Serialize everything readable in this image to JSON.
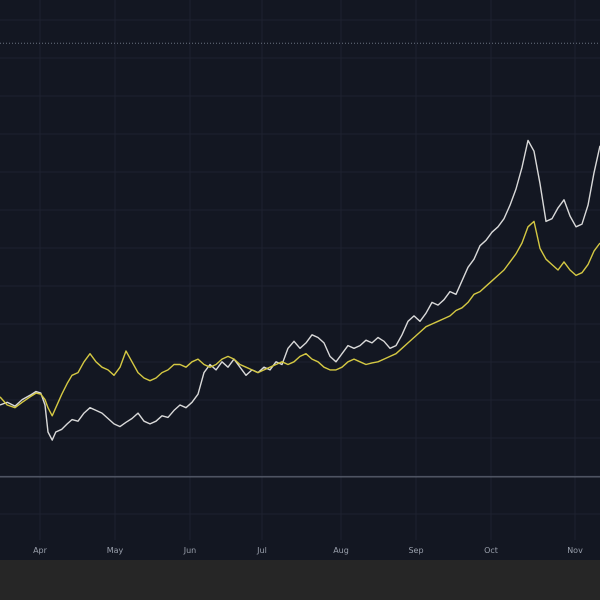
{
  "chart_data": {
    "type": "line",
    "title": "",
    "xlabel": "",
    "ylabel": "",
    "grid": true,
    "legend": "none",
    "x_ticks": [
      "Apr",
      "May",
      "Jun",
      "Jul",
      "Aug",
      "Sep",
      "Oct",
      "Nov"
    ],
    "x_range": [
      0,
      100
    ],
    "y_range": [
      0,
      100
    ],
    "reference_lines": [
      {
        "y": 92,
        "style": "dotted"
      },
      {
        "y": 11.7,
        "style": "solid"
      }
    ],
    "series": [
      {
        "color": "#d9d9d9",
        "values": [
          [
            0,
            25
          ],
          [
            1.2,
            25.5
          ],
          [
            2.5,
            24.8
          ],
          [
            3.7,
            26
          ],
          [
            5,
            26.8
          ],
          [
            6,
            27.5
          ],
          [
            6.8,
            27.2
          ],
          [
            7.5,
            25
          ],
          [
            8,
            20
          ],
          [
            8.7,
            18.5
          ],
          [
            9.3,
            20
          ],
          [
            10.3,
            20.5
          ],
          [
            11.2,
            21.5
          ],
          [
            12,
            22.3
          ],
          [
            13,
            22
          ],
          [
            14,
            23.5
          ],
          [
            15,
            24.5
          ],
          [
            16,
            24
          ],
          [
            17,
            23.5
          ],
          [
            18,
            22.5
          ],
          [
            19,
            21.5
          ],
          [
            20,
            21
          ],
          [
            21,
            21.8
          ],
          [
            22,
            22.5
          ],
          [
            23,
            23.5
          ],
          [
            24,
            22
          ],
          [
            25,
            21.5
          ],
          [
            26,
            22
          ],
          [
            27,
            23
          ],
          [
            28,
            22.7
          ],
          [
            29,
            24
          ],
          [
            30,
            25
          ],
          [
            31,
            24.5
          ],
          [
            32,
            25.5
          ],
          [
            33,
            27
          ],
          [
            34,
            31
          ],
          [
            35,
            32.5
          ],
          [
            36,
            31.5
          ],
          [
            37,
            33
          ],
          [
            38,
            32
          ],
          [
            39,
            33.5
          ],
          [
            40,
            32
          ],
          [
            41,
            30.5
          ],
          [
            42,
            31.5
          ],
          [
            43,
            31
          ],
          [
            44,
            32
          ],
          [
            45,
            31.5
          ],
          [
            46,
            33
          ],
          [
            47,
            32.5
          ],
          [
            48,
            35.5
          ],
          [
            49,
            36.8
          ],
          [
            50,
            35.5
          ],
          [
            51,
            36.5
          ],
          [
            52,
            38
          ],
          [
            53,
            37.5
          ],
          [
            54,
            36.5
          ],
          [
            55,
            34
          ],
          [
            56,
            33
          ],
          [
            57,
            34.5
          ],
          [
            58,
            36
          ],
          [
            59,
            35.5
          ],
          [
            60,
            36
          ],
          [
            61,
            37
          ],
          [
            62,
            36.5
          ],
          [
            63,
            37.5
          ],
          [
            64,
            36.8
          ],
          [
            65,
            35.5
          ],
          [
            66,
            36
          ],
          [
            67,
            38
          ],
          [
            68,
            40.5
          ],
          [
            69,
            41.5
          ],
          [
            70,
            40.5
          ],
          [
            71,
            42
          ],
          [
            72,
            44
          ],
          [
            73,
            43.5
          ],
          [
            74,
            44.5
          ],
          [
            75,
            46
          ],
          [
            76,
            45.5
          ],
          [
            77,
            48
          ],
          [
            78,
            50.5
          ],
          [
            79,
            52
          ],
          [
            80,
            54.5
          ],
          [
            81,
            55.5
          ],
          [
            82,
            57
          ],
          [
            83,
            58
          ],
          [
            84,
            59.5
          ],
          [
            85,
            62
          ],
          [
            86,
            65
          ],
          [
            87,
            69
          ],
          [
            88,
            74
          ],
          [
            89,
            72
          ],
          [
            90,
            66
          ],
          [
            91,
            59
          ],
          [
            92,
            59.5
          ],
          [
            93,
            61.5
          ],
          [
            94,
            63
          ],
          [
            95,
            60
          ],
          [
            96,
            58
          ],
          [
            97,
            58.5
          ],
          [
            98,
            62
          ],
          [
            99,
            68
          ],
          [
            100,
            73
          ]
        ]
      },
      {
        "color": "#d4c843",
        "values": [
          [
            0,
            26.5
          ],
          [
            1.2,
            25
          ],
          [
            2.5,
            24.5
          ],
          [
            3.7,
            25.5
          ],
          [
            5,
            26.5
          ],
          [
            6,
            27.2
          ],
          [
            6.8,
            27
          ],
          [
            7.5,
            26
          ],
          [
            8,
            24.5
          ],
          [
            8.7,
            23
          ],
          [
            9.3,
            24.5
          ],
          [
            10.3,
            27
          ],
          [
            11.2,
            29
          ],
          [
            12,
            30.5
          ],
          [
            13,
            31
          ],
          [
            14,
            33
          ],
          [
            15,
            34.5
          ],
          [
            16,
            33
          ],
          [
            17,
            32
          ],
          [
            18,
            31.5
          ],
          [
            19,
            30.5
          ],
          [
            20,
            32
          ],
          [
            21,
            35
          ],
          [
            22,
            33
          ],
          [
            23,
            31
          ],
          [
            24,
            30
          ],
          [
            25,
            29.5
          ],
          [
            26,
            30
          ],
          [
            27,
            31
          ],
          [
            28,
            31.5
          ],
          [
            29,
            32.5
          ],
          [
            30,
            32.5
          ],
          [
            31,
            32
          ],
          [
            32,
            33
          ],
          [
            33,
            33.5
          ],
          [
            34,
            32.5
          ],
          [
            35,
            32
          ],
          [
            36,
            32.5
          ],
          [
            37,
            33.5
          ],
          [
            38,
            34
          ],
          [
            39,
            33.5
          ],
          [
            40,
            32.5
          ],
          [
            41,
            32
          ],
          [
            42,
            31.5
          ],
          [
            43,
            31
          ],
          [
            44,
            31.5
          ],
          [
            45,
            32
          ],
          [
            46,
            32.5
          ],
          [
            47,
            33
          ],
          [
            48,
            32.5
          ],
          [
            49,
            33
          ],
          [
            50,
            34
          ],
          [
            51,
            34.5
          ],
          [
            52,
            33.5
          ],
          [
            53,
            33
          ],
          [
            54,
            32
          ],
          [
            55,
            31.5
          ],
          [
            56,
            31.5
          ],
          [
            57,
            32
          ],
          [
            58,
            33
          ],
          [
            59,
            33.5
          ],
          [
            60,
            33
          ],
          [
            61,
            32.5
          ],
          [
            62,
            32.8
          ],
          [
            63,
            33
          ],
          [
            64,
            33.5
          ],
          [
            65,
            34
          ],
          [
            66,
            34.5
          ],
          [
            67,
            35.5
          ],
          [
            68,
            36.5
          ],
          [
            69,
            37.5
          ],
          [
            70,
            38.5
          ],
          [
            71,
            39.5
          ],
          [
            72,
            40
          ],
          [
            73,
            40.5
          ],
          [
            74,
            41
          ],
          [
            75,
            41.5
          ],
          [
            76,
            42.5
          ],
          [
            77,
            43
          ],
          [
            78,
            44
          ],
          [
            79,
            45.5
          ],
          [
            80,
            46
          ],
          [
            81,
            47
          ],
          [
            82,
            48
          ],
          [
            83,
            49
          ],
          [
            84,
            50
          ],
          [
            85,
            51.5
          ],
          [
            86,
            53
          ],
          [
            87,
            55
          ],
          [
            88,
            58
          ],
          [
            89,
            59
          ],
          [
            90,
            54
          ],
          [
            91,
            52
          ],
          [
            92,
            51
          ],
          [
            93,
            50
          ],
          [
            94,
            51.5
          ],
          [
            95,
            50
          ],
          [
            96,
            49
          ],
          [
            97,
            49.5
          ],
          [
            98,
            51
          ],
          [
            99,
            53.5
          ],
          [
            100,
            55
          ]
        ]
      }
    ]
  }
}
